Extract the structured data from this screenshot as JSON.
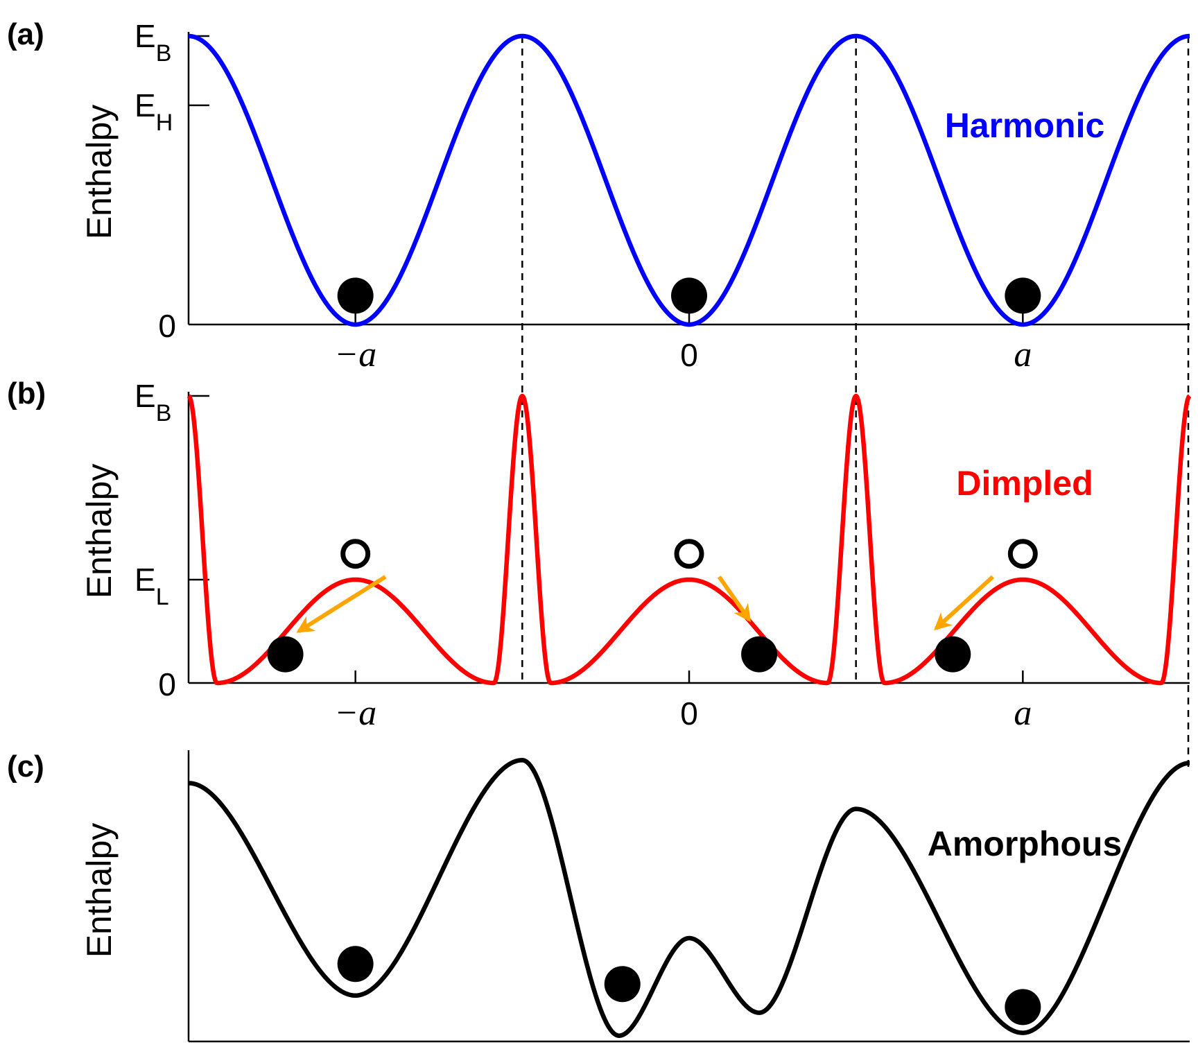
{
  "chart_data": [
    {
      "id": "a",
      "type": "line",
      "panel_label": "(a)",
      "ylabel": "Enthalpy",
      "title": "Harmonic",
      "color": "#0000ff",
      "x_domain": [
        -1.5,
        1.5
      ],
      "y_domain": [
        0,
        1
      ],
      "y_ticks": [
        {
          "value": 1.0,
          "main": "E",
          "sub": "B"
        },
        {
          "value": 0.76,
          "main": "E",
          "sub": "H"
        },
        {
          "value": 0,
          "main": "0",
          "sub": ""
        }
      ],
      "x_ticks": [
        {
          "value": -1,
          "label": "−a",
          "italic": true
        },
        {
          "value": 0,
          "label": "0",
          "italic": false
        },
        {
          "value": 1,
          "label": "a",
          "italic": true
        }
      ],
      "curve": {
        "kind": "harmonic",
        "E_B": 1.0
      },
      "filled_balls": [
        {
          "x": -1,
          "y": 0.1
        },
        {
          "x": 0,
          "y": 0.1
        },
        {
          "x": 1,
          "y": 0.1
        }
      ],
      "open_balls": [],
      "arrows": []
    },
    {
      "id": "b",
      "type": "line",
      "panel_label": "(b)",
      "ylabel": "Enthalpy",
      "title": "Dimpled",
      "color": "#ff0000",
      "x_domain": [
        -1.5,
        1.5
      ],
      "y_domain": [
        0,
        1
      ],
      "y_ticks": [
        {
          "value": 1.0,
          "main": "E",
          "sub": "B"
        },
        {
          "value": 0.36,
          "main": "E",
          "sub": "L"
        },
        {
          "value": 0,
          "main": "0",
          "sub": ""
        }
      ],
      "x_ticks": [
        {
          "value": -1,
          "label": "−a",
          "italic": true
        },
        {
          "value": 0,
          "label": "0",
          "italic": false
        },
        {
          "value": 1,
          "label": "a",
          "italic": true
        }
      ],
      "curve": {
        "kind": "dimpled",
        "E_B": 1.0,
        "E_L": 0.36,
        "d": 0.415
      },
      "filled_balls": [
        {
          "x": -1.21,
          "y": 0.1
        },
        {
          "x": 0.21,
          "y": 0.1
        },
        {
          "x": 0.79,
          "y": 0.1
        }
      ],
      "open_balls": [
        {
          "x": -1,
          "y": 0.45
        },
        {
          "x": 0,
          "y": 0.45
        },
        {
          "x": 1,
          "y": 0.45
        }
      ],
      "arrows": [
        {
          "from": [
            -0.91,
            0.37
          ],
          "to": [
            -1.17,
            0.18
          ]
        },
        {
          "from": [
            0.09,
            0.37
          ],
          "to": [
            0.18,
            0.22
          ]
        },
        {
          "from": [
            0.91,
            0.37
          ],
          "to": [
            0.74,
            0.19
          ]
        }
      ],
      "arrow_color": "#ffa500"
    },
    {
      "id": "c",
      "type": "line",
      "panel_label": "(c)",
      "ylabel": "Enthalpy",
      "title": "Amorphous",
      "color": "#000000",
      "x_domain": [
        -1.5,
        1.5
      ],
      "y_domain": [
        0,
        1
      ],
      "y_ticks": [],
      "x_ticks": [],
      "curve": {
        "kind": "points",
        "points": [
          [
            -1.5,
            0.9
          ],
          [
            -1.0,
            0.16
          ],
          [
            -0.5,
            0.98
          ],
          [
            -0.21,
            0.02
          ],
          [
            0.0,
            0.36
          ],
          [
            0.21,
            0.1
          ],
          [
            0.5,
            0.81
          ],
          [
            1.0,
            0.03
          ],
          [
            1.5,
            0.97
          ]
        ]
      },
      "filled_balls": [
        {
          "x": -1,
          "y": 0.27
        },
        {
          "x": -0.2,
          "y": 0.2
        },
        {
          "x": 1,
          "y": 0.12
        }
      ],
      "open_balls": [],
      "arrows": []
    }
  ]
}
